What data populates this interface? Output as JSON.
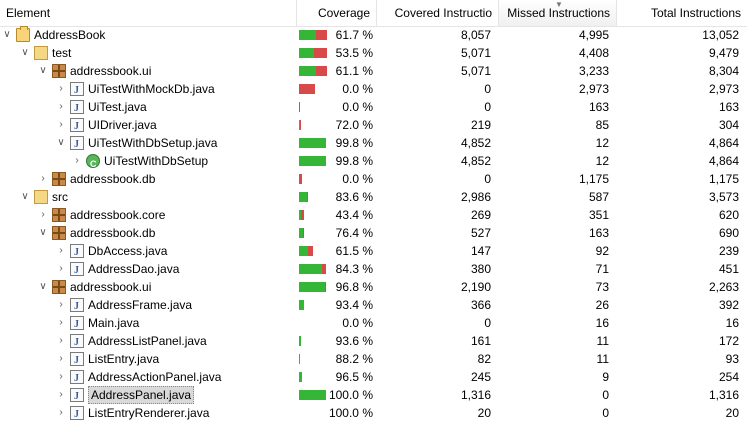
{
  "header": {
    "element": "Element",
    "coverage": "Coverage",
    "covered": "Covered Instructio",
    "missed": "Missed Instructions",
    "total": "Total Instructions"
  },
  "colors": {
    "covered": "#36b636",
    "missed": "#d84a4a"
  },
  "rows": [
    {
      "level": 0,
      "exp": "open",
      "icon": "project",
      "name": "AddressBook",
      "coverage": "61.7 %",
      "ratio": 0.617,
      "covered": "8,057",
      "missed": "4,995",
      "total": "13,052",
      "bar": 28
    },
    {
      "level": 1,
      "exp": "open",
      "icon": "folder",
      "name": "test",
      "coverage": "53.5 %",
      "ratio": 0.535,
      "covered": "5,071",
      "missed": "4,408",
      "total": "9,479",
      "bar": 28
    },
    {
      "level": 2,
      "exp": "open",
      "icon": "package",
      "name": "addressbook.ui",
      "coverage": "61.1 %",
      "ratio": 0.611,
      "covered": "5,071",
      "missed": "3,233",
      "total": "8,304",
      "bar": 28
    },
    {
      "level": 3,
      "exp": "closed",
      "icon": "java",
      "name": "UiTestWithMockDb.java",
      "coverage": "0.0 %",
      "ratio": 0,
      "covered": "0",
      "missed": "2,973",
      "total": "2,973",
      "bar": 16
    },
    {
      "level": 3,
      "exp": "closed",
      "icon": "java",
      "name": "UiTest.java",
      "coverage": "0.0 %",
      "ratio": 0,
      "covered": "0",
      "missed": "163",
      "total": "163",
      "bar": 1
    },
    {
      "level": 3,
      "exp": "closed",
      "icon": "java",
      "name": "UIDriver.java",
      "coverage": "72.0 %",
      "ratio": 0.72,
      "covered": "219",
      "missed": "85",
      "total": "304",
      "bar": 2
    },
    {
      "level": 3,
      "exp": "open",
      "icon": "java",
      "name": "UiTestWithDbSetup.java",
      "coverage": "99.8 %",
      "ratio": 0.998,
      "covered": "4,852",
      "missed": "12",
      "total": "4,864",
      "bar": 27
    },
    {
      "level": 4,
      "exp": "closed",
      "icon": "class",
      "name": "UiTestWithDbSetup",
      "coverage": "99.8 %",
      "ratio": 0.998,
      "covered": "4,852",
      "missed": "12",
      "total": "4,864",
      "bar": 27
    },
    {
      "level": 2,
      "exp": "closed",
      "icon": "package",
      "name": "addressbook.db",
      "coverage": "0.0 %",
      "ratio": 0,
      "covered": "0",
      "missed": "1,175",
      "total": "1,175",
      "bar": 3
    },
    {
      "level": 1,
      "exp": "open",
      "icon": "folder",
      "name": "src",
      "coverage": "83.6 %",
      "ratio": 0.836,
      "covered": "2,986",
      "missed": "587",
      "total": "3,573",
      "bar": 9
    },
    {
      "level": 2,
      "exp": "closed",
      "icon": "package",
      "name": "addressbook.core",
      "coverage": "43.4 %",
      "ratio": 0.434,
      "covered": "269",
      "missed": "351",
      "total": "620",
      "bar": 5
    },
    {
      "level": 2,
      "exp": "open",
      "icon": "package",
      "name": "addressbook.db",
      "coverage": "76.4 %",
      "ratio": 0.764,
      "covered": "527",
      "missed": "163",
      "total": "690",
      "bar": 5
    },
    {
      "level": 3,
      "exp": "closed",
      "icon": "java",
      "name": "DbAccess.java",
      "coverage": "61.5 %",
      "ratio": 0.615,
      "covered": "147",
      "missed": "92",
      "total": "239",
      "bar": 14
    },
    {
      "level": 3,
      "exp": "closed",
      "icon": "java",
      "name": "AddressDao.java",
      "coverage": "84.3 %",
      "ratio": 0.843,
      "covered": "380",
      "missed": "71",
      "total": "451",
      "bar": 27
    },
    {
      "level": 2,
      "exp": "open",
      "icon": "package",
      "name": "addressbook.ui",
      "coverage": "96.8 %",
      "ratio": 0.968,
      "covered": "2,190",
      "missed": "73",
      "total": "2,263",
      "bar": 27
    },
    {
      "level": 3,
      "exp": "closed",
      "icon": "java",
      "name": "AddressFrame.java",
      "coverage": "93.4 %",
      "ratio": 0.934,
      "covered": "366",
      "missed": "26",
      "total": "392",
      "bar": 5
    },
    {
      "level": 3,
      "exp": "closed",
      "icon": "java",
      "name": "Main.java",
      "coverage": "0.0 %",
      "ratio": 0,
      "covered": "0",
      "missed": "16",
      "total": "16",
      "bar": 0
    },
    {
      "level": 3,
      "exp": "closed",
      "icon": "java",
      "name": "AddressListPanel.java",
      "coverage": "93.6 %",
      "ratio": 0.936,
      "covered": "161",
      "missed": "11",
      "total": "172",
      "bar": 2
    },
    {
      "level": 3,
      "exp": "closed",
      "icon": "java",
      "name": "ListEntry.java",
      "coverage": "88.2 %",
      "ratio": 0.882,
      "covered": "82",
      "missed": "11",
      "total": "93",
      "bar": 1
    },
    {
      "level": 3,
      "exp": "closed",
      "icon": "java",
      "name": "AddressActionPanel.java",
      "coverage": "96.5 %",
      "ratio": 0.965,
      "covered": "245",
      "missed": "9",
      "total": "254",
      "bar": 3
    },
    {
      "level": 3,
      "exp": "closed",
      "icon": "java",
      "name": "AddressPanel.java",
      "coverage": "100.0 %",
      "ratio": 1,
      "covered": "1,316",
      "missed": "0",
      "total": "1,316",
      "bar": 27,
      "selected": true
    },
    {
      "level": 3,
      "exp": "closed",
      "icon": "java",
      "name": "ListEntryRenderer.java",
      "coverage": "100.0 %",
      "ratio": 1,
      "covered": "20",
      "missed": "0",
      "total": "20",
      "bar": 0
    }
  ]
}
